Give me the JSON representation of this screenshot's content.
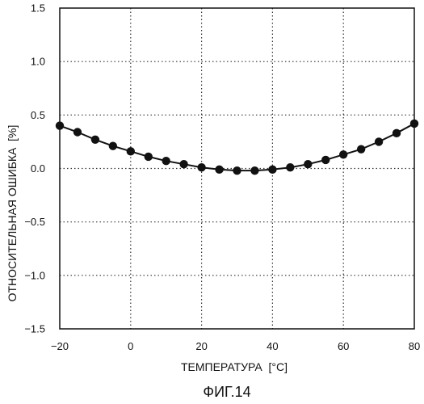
{
  "chart_data": {
    "type": "line",
    "xlabel": "ТЕМПЕРАТУРА  [°C]",
    "ylabel": "ОТНОСИТЕЛЬНАЯ ОШИБКА  [%]",
    "caption": "ФИГ.14",
    "xlim": [
      -20,
      80
    ],
    "ylim": [
      -1.5,
      1.5
    ],
    "x_ticks": [
      -20,
      0,
      20,
      40,
      60,
      80
    ],
    "x_tick_labels": [
      "−20",
      "0",
      "20",
      "40",
      "60",
      "80"
    ],
    "y_ticks": [
      1.5,
      1.0,
      0.5,
      0.0,
      -0.5,
      -1.0,
      -1.5
    ],
    "y_tick_labels": [
      "1.5",
      "1.0",
      "0.5",
      "0.0",
      "−0.5",
      "−1.0",
      "−1.5"
    ],
    "grid": true,
    "series": [
      {
        "x": [
          -20,
          -15,
          -10,
          -5,
          0,
          5,
          10,
          15,
          20,
          25,
          30,
          35,
          40,
          45,
          50,
          55,
          60,
          65,
          70,
          75,
          80
        ],
        "y": [
          0.4,
          0.34,
          0.27,
          0.21,
          0.16,
          0.11,
          0.07,
          0.04,
          0.01,
          -0.01,
          -0.02,
          -0.02,
          -0.01,
          0.01,
          0.04,
          0.08,
          0.13,
          0.18,
          0.25,
          0.33,
          0.42
        ]
      }
    ],
    "colors": {
      "line": "#111111",
      "marker": "#111111",
      "grid": "#333333"
    }
  }
}
